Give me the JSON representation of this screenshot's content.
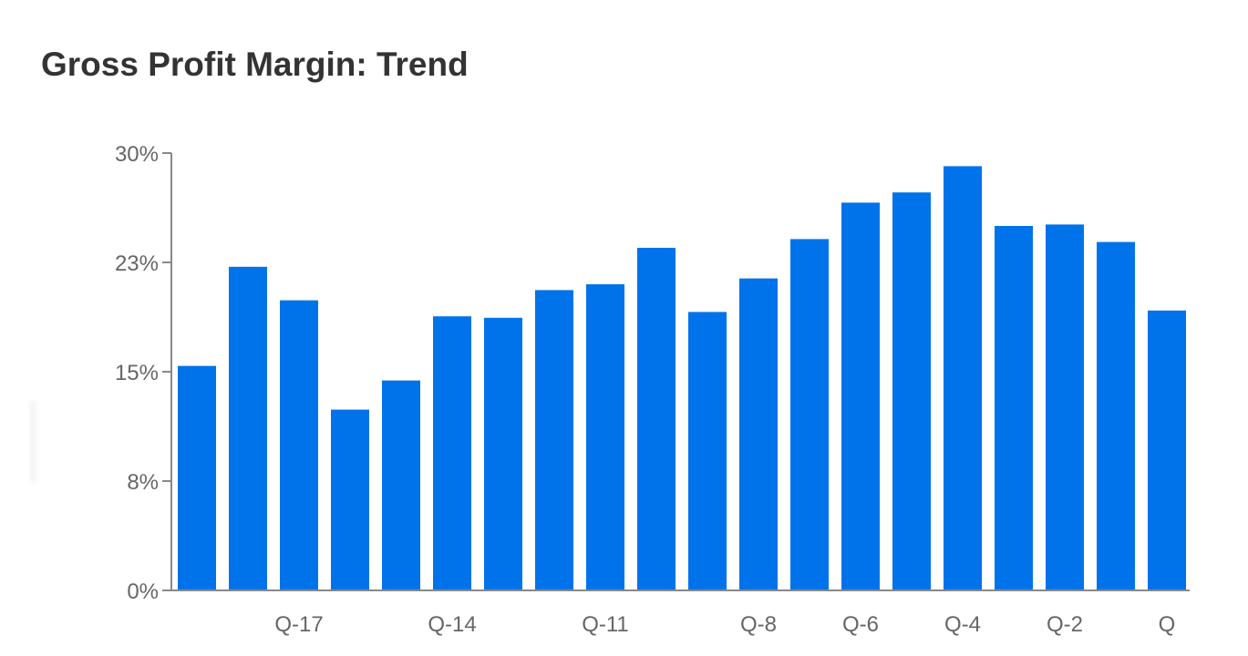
{
  "chart_data": {
    "type": "bar",
    "title": "Gross Profit Margin: Trend",
    "categories": [
      "",
      "",
      "Q-17",
      "",
      "",
      "Q-14",
      "",
      "",
      "Q-11",
      "",
      "",
      "Q-8",
      "",
      "Q-6",
      "",
      "Q-4",
      "",
      "Q-2",
      "",
      "Q"
    ],
    "values": [
      15.4,
      22.2,
      19.9,
      12.4,
      14.4,
      18.8,
      18.7,
      20.6,
      21.0,
      23.5,
      19.1,
      21.4,
      24.1,
      26.6,
      27.3,
      29.1,
      25.0,
      25.1,
      23.9,
      19.2
    ],
    "x_tick_labels": [
      "Q-17",
      "Q-14",
      "Q-11",
      "Q-8",
      "Q-6",
      "Q-4",
      "Q-2",
      "Q"
    ],
    "y_ticks": [
      0,
      7.5,
      15,
      22.5,
      30
    ],
    "y_tick_labels": [
      "0%",
      "8%",
      "15%",
      "23%",
      "30%"
    ],
    "ylim": [
      0,
      30
    ],
    "xlabel": "",
    "ylabel": "",
    "grid": false,
    "legend": "none",
    "bar_color": "#0073ea",
    "axis_color": "#888888",
    "text_color": "#666666",
    "title_color": "#333333"
  }
}
